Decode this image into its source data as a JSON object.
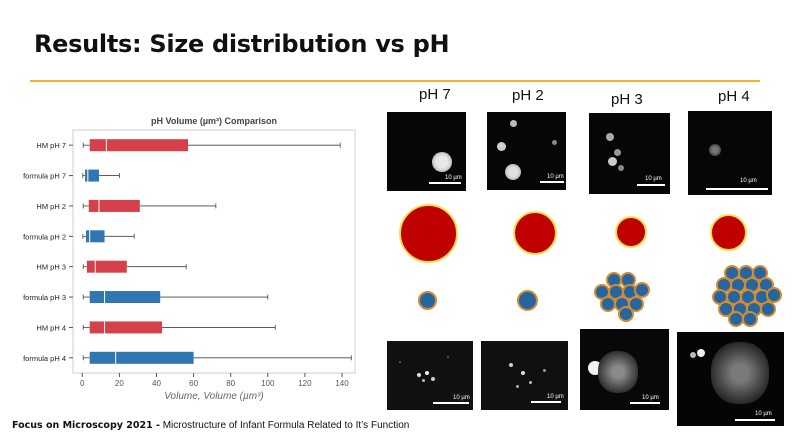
{
  "slide": {
    "title": "Results: Size distribution vs pH",
    "footer_bold": "Focus on Microscopy 2021 -",
    "footer_text": " Microstructure of Infant Formula Related to It’s Function"
  },
  "colors": {
    "hm": "#d6404a",
    "formula": "#2f76b3",
    "droplet": "#c00000",
    "droplet_border": "#f5e04a",
    "particle": "#2566a0",
    "particle_border": "#d48a2e",
    "accent_rule": "#f0b030"
  },
  "columns": [
    {
      "label": "pH 7"
    },
    {
      "label": "pH 2"
    },
    {
      "label": "pH 3"
    },
    {
      "label": "pH 4"
    }
  ],
  "scale_bar_text": "10 µm",
  "chart_data": {
    "type": "boxplot",
    "title": "pH Volume (µm³) Comparison",
    "xlabel": "Volume, Volume (µm³)",
    "ylabel": "",
    "xlim": [
      -5,
      147
    ],
    "xticks": [
      0,
      20,
      40,
      60,
      80,
      100,
      120,
      140
    ],
    "grid": false,
    "orientation": "horizontal",
    "categories": [
      "HM pH 7",
      "formula pH 7",
      "HM pH 2",
      "formula pH 2",
      "HM pH 3",
      "formula pH 3",
      "HM pH 4",
      "formula pH 4"
    ],
    "series": [
      {
        "min": 0.5,
        "q1": 4,
        "median": 13,
        "q3": 57,
        "max": 139
      },
      {
        "min": 0.3,
        "q1": 1.5,
        "median": 3,
        "q3": 9,
        "max": 20
      },
      {
        "min": 0.5,
        "q1": 3.5,
        "median": 9,
        "q3": 31,
        "max": 72
      },
      {
        "min": 0.3,
        "q1": 2,
        "median": 4,
        "q3": 12,
        "max": 28
      },
      {
        "min": 0.5,
        "q1": 2.5,
        "median": 7,
        "q3": 24,
        "max": 56
      },
      {
        "min": 0.5,
        "q1": 4,
        "median": 12,
        "q3": 42,
        "max": 100
      },
      {
        "min": 0.5,
        "q1": 4,
        "median": 12,
        "q3": 43,
        "max": 104
      },
      {
        "min": 0.5,
        "q1": 4,
        "median": 18,
        "q3": 60,
        "max": 145
      }
    ]
  }
}
